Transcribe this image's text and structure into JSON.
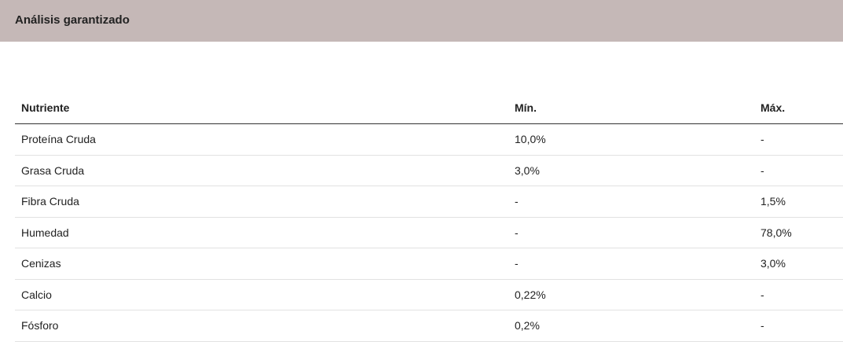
{
  "header": {
    "title": "Análisis garantizado"
  },
  "table": {
    "columns": [
      "Nutriente",
      "Mín.",
      "Máx."
    ],
    "rows": [
      [
        "Proteína Cruda",
        "10,0%",
        "-"
      ],
      [
        "Grasa Cruda",
        "3,0%",
        "-"
      ],
      [
        "Fibra Cruda",
        "-",
        "1,5%"
      ],
      [
        "Humedad",
        "-",
        "78,0%"
      ],
      [
        "Cenizas",
        "-",
        "3,0%"
      ],
      [
        "Calcio",
        "0,22%",
        "-"
      ],
      [
        "Fósforo",
        "0,2%",
        "-"
      ]
    ]
  }
}
